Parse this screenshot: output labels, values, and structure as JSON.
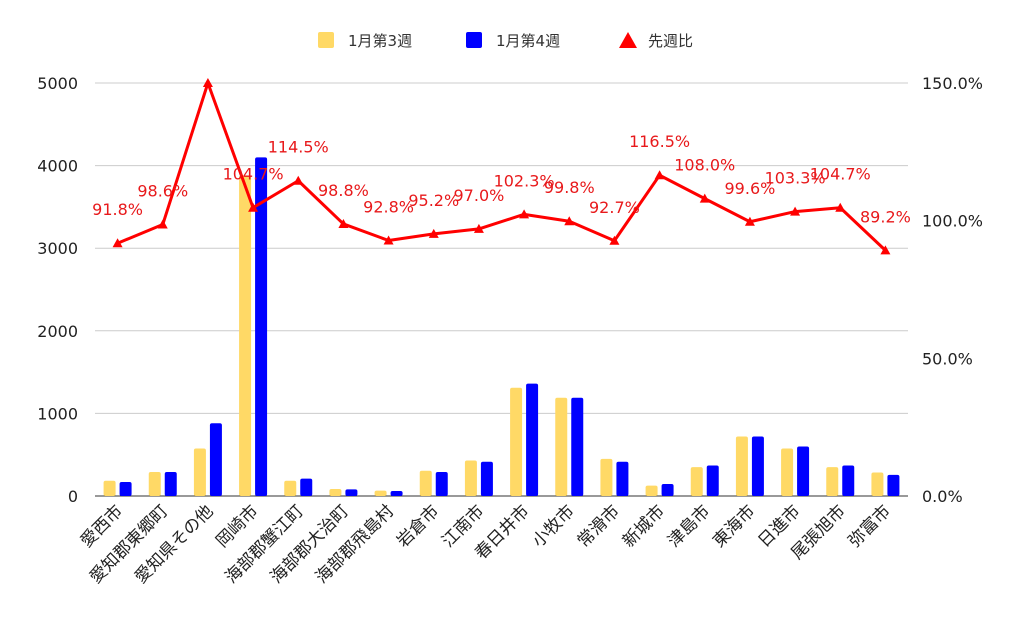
{
  "colors": {
    "week3": "#ffd966",
    "week4": "#0000ff",
    "ratio": "#ff0000",
    "grid": "#cccccc"
  },
  "legend": {
    "position": "top",
    "items": [
      "1月第3週",
      "1月第4週",
      "先週比"
    ],
    "icons": [
      "square-swatch-icon",
      "square-swatch-icon",
      "triangle-up-icon"
    ]
  },
  "chart_data": {
    "type": "bar",
    "categories": [
      "愛西市",
      "愛知郡東郷町",
      "愛知県その他",
      "岡崎市",
      "海部郡蟹江町",
      "海部郡大治町",
      "海部郡飛島村",
      "岩倉市",
      "江南市",
      "春日井市",
      "小牧市",
      "常滑市",
      "新城市",
      "津島市",
      "東海市",
      "日進市",
      "尾張旭市",
      "弥富市"
    ],
    "series": [
      {
        "name": "1月第3週",
        "type": "bar",
        "axis": "left",
        "values": [
          185,
          290,
          575,
          3880,
          185,
          85,
          65,
          305,
          430,
          1310,
          1190,
          450,
          125,
          350,
          720,
          575,
          350,
          285
        ]
      },
      {
        "name": "1月第4週",
        "type": "bar",
        "axis": "left",
        "values": [
          170,
          290,
          880,
          4100,
          210,
          80,
          60,
          290,
          415,
          1360,
          1190,
          415,
          145,
          370,
          720,
          600,
          370,
          255
        ]
      },
      {
        "name": "先週比",
        "type": "line",
        "axis": "right",
        "marker": "triangle",
        "values": [
          91.8,
          98.6,
          150.0,
          104.7,
          114.5,
          98.8,
          92.8,
          95.2,
          97.0,
          102.3,
          99.8,
          92.7,
          116.5,
          108.0,
          99.6,
          103.3,
          104.7,
          89.2
        ],
        "labels": [
          "91.8%",
          "98.6%",
          "",
          "104.7%",
          "114.5%",
          "98.8%",
          "92.8%",
          "95.2%",
          "97.0%",
          "102.3%",
          "99.8%",
          "92.7%",
          "116.5%",
          "108.0%",
          "99.6%",
          "103.3%",
          "104.7%",
          "89.2%"
        ]
      }
    ],
    "y_left": {
      "ylim": [
        0,
        5000
      ],
      "ticks": [
        "0",
        "1000",
        "2000",
        "3000",
        "4000",
        "5000"
      ]
    },
    "y_right": {
      "ylim": [
        0,
        150
      ],
      "ticks": [
        "0.0%",
        "50.0%",
        "100.0%",
        "150.0%"
      ]
    },
    "grid": true
  }
}
